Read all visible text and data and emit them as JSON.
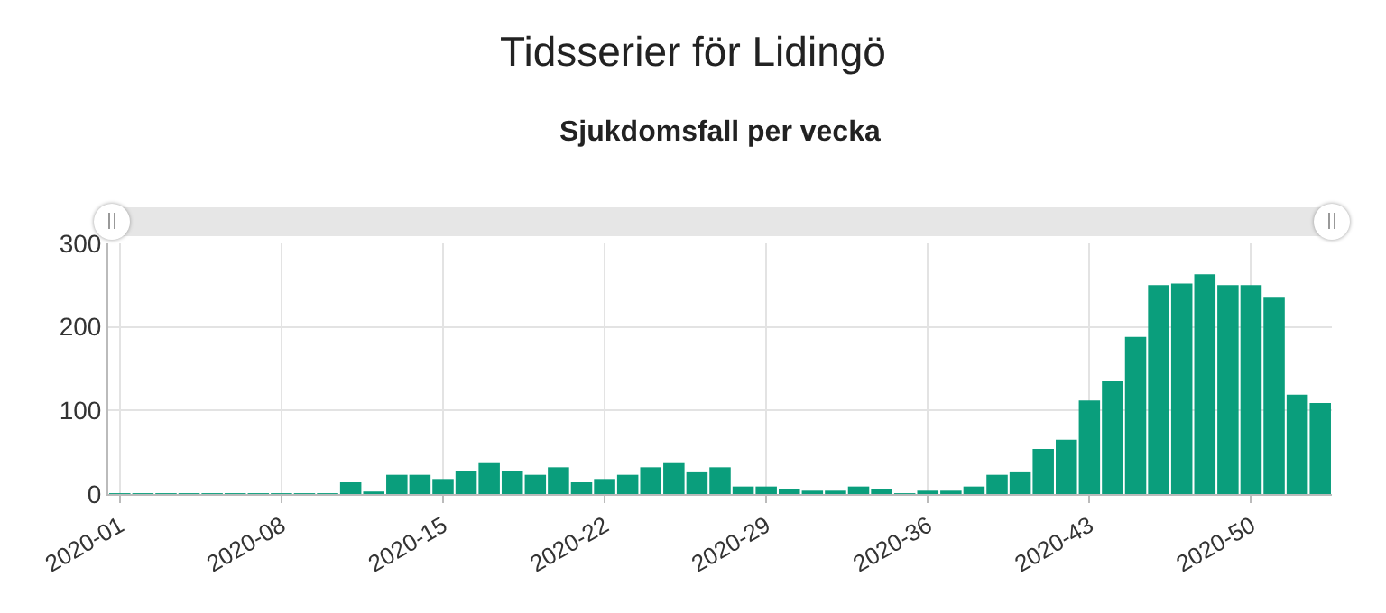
{
  "chart_data": {
    "type": "bar",
    "title": "Tidsserier för Lidingö",
    "subtitle": "Sjukdomsfall per vecka",
    "categories": [
      "2020-01",
      null,
      null,
      null,
      null,
      null,
      null,
      "2020-08",
      null,
      null,
      null,
      null,
      null,
      null,
      "2020-15",
      null,
      null,
      null,
      null,
      null,
      null,
      "2020-22",
      null,
      null,
      null,
      null,
      null,
      null,
      "2020-29",
      null,
      null,
      null,
      null,
      null,
      null,
      "2020-36",
      null,
      null,
      null,
      null,
      null,
      null,
      "2020-43",
      null,
      null,
      null,
      null,
      null,
      null,
      "2020-50",
      null,
      null,
      null
    ],
    "series": [
      {
        "color": "#0a9e7c",
        "values": [
          1,
          1,
          1,
          1,
          1,
          1,
          1,
          1,
          1,
          1,
          14,
          3,
          23,
          23,
          18,
          28,
          37,
          28,
          23,
          32,
          14,
          18,
          23,
          32,
          37,
          26,
          32,
          9,
          9,
          6,
          4,
          4,
          9,
          6,
          1,
          4,
          4,
          9,
          23,
          26,
          54,
          65,
          112,
          135,
          188,
          250,
          252,
          263,
          250,
          250,
          235,
          119,
          109
        ]
      }
    ],
    "ylim": [
      0,
      300
    ],
    "yticks": [
      0,
      100,
      200,
      300
    ],
    "grid": true
  }
}
